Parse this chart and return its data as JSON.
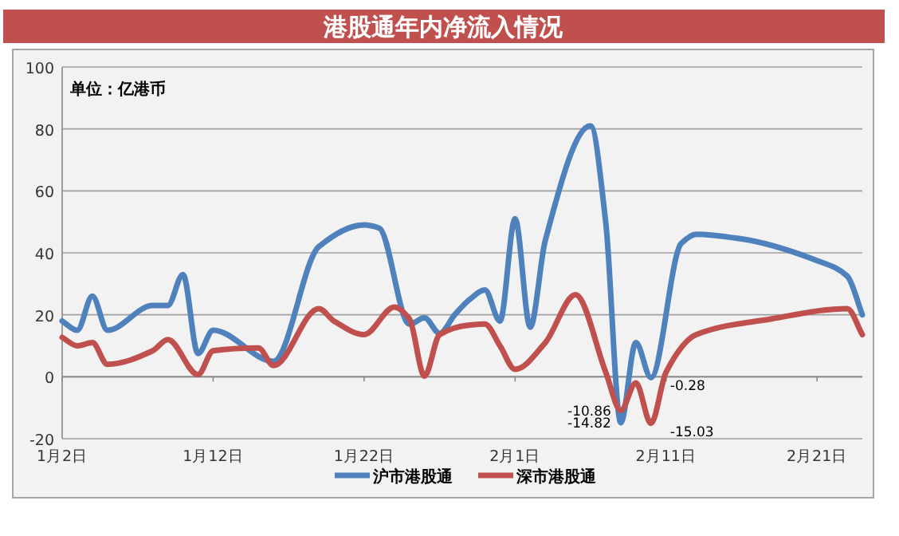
{
  "chart_data": {
    "type": "line",
    "title": "港股通年内净流入情况",
    "annotations": [
      "单位：亿港币"
    ],
    "xlim": [
      "--01-02",
      "--02-24"
    ],
    "xticks": [
      {
        "value": "--01-02",
        "label": "1月2日"
      },
      {
        "value": "--01-12",
        "label": "1月12日"
      },
      {
        "value": "--01-22",
        "label": "1月22日"
      },
      {
        "value": "--02-01",
        "label": "2月1日"
      },
      {
        "value": "--02-11",
        "label": "2月11日"
      },
      {
        "value": "--02-21",
        "label": "2月21日"
      }
    ],
    "ylim": [
      -20,
      100
    ],
    "yticks": [
      -20,
      0,
      20,
      40,
      60,
      80,
      100
    ],
    "grid": "y",
    "legend": "bottom",
    "marker": "none",
    "line_style": "solid",
    "series": [
      {
        "name": "沪市港股通",
        "color": "#4f81bd",
        "x": [
          "--01-02",
          "--01-03",
          "--01-04",
          "--01-05",
          "--01-08",
          "--01-09",
          "--01-10",
          "--01-11",
          "--01-12",
          "--01-16",
          "--01-19",
          "--01-22",
          "--01-23",
          "--01-25",
          "--01-26",
          "--01-27",
          "--01-28",
          "--01-29",
          "--01-30",
          "--01-31",
          "--02-01",
          "--02-02",
          "--02-03",
          "--02-06",
          "--02-07",
          "--02-08",
          "--02-09",
          "--02-10",
          "--02-12",
          "--02-13",
          "--02-16",
          "--02-21",
          "--02-23",
          "--02-24"
        ],
        "values": [
          18,
          15,
          26,
          15,
          23,
          23,
          33,
          7.5,
          15,
          5,
          42,
          49,
          48,
          17,
          19,
          14,
          20,
          25,
          28,
          18,
          51,
          16,
          44,
          81,
          50,
          -14.82,
          11,
          -0.28,
          43,
          46,
          44.5,
          37.5,
          32.5,
          20
        ],
        "value_labels": [
          null,
          null,
          null,
          null,
          null,
          null,
          null,
          null,
          null,
          null,
          null,
          null,
          null,
          null,
          null,
          null,
          null,
          null,
          null,
          null,
          null,
          null,
          null,
          null,
          null,
          "-14.82",
          null,
          "-0.28",
          null,
          null,
          null,
          null,
          null,
          null
        ]
      },
      {
        "name": "深市港股通",
        "color": "#c0504d",
        "x": [
          "--01-02",
          "--01-03",
          "--01-04",
          "--01-05",
          "--01-08",
          "--01-09",
          "--01-11",
          "--01-12",
          "--01-15",
          "--01-16",
          "--01-19",
          "--01-20",
          "--01-22",
          "--01-24",
          "--01-25",
          "--01-26",
          "--01-27",
          "--01-29",
          "--01-30",
          "--01-31",
          "--02-01",
          "--02-03",
          "--02-05",
          "--02-07",
          "--02-08",
          "--02-09",
          "--02-10",
          "--02-11",
          "--02-13",
          "--02-18",
          "--02-23",
          "--02-24"
        ],
        "values": [
          12.7,
          10,
          11,
          4,
          8.4,
          12,
          0.7,
          8.4,
          9.3,
          3.6,
          22,
          18,
          13.6,
          22.5,
          18.7,
          0.2,
          13.6,
          16.7,
          17,
          10,
          2.4,
          11,
          26.5,
          1.5,
          -10.86,
          -2,
          -15.03,
          1.5,
          13.6,
          18.7,
          22,
          13.6
        ],
        "value_labels": [
          null,
          null,
          null,
          null,
          null,
          null,
          null,
          null,
          null,
          null,
          null,
          null,
          null,
          null,
          null,
          null,
          null,
          null,
          null,
          null,
          null,
          null,
          null,
          null,
          "-10.86",
          null,
          "-15.03",
          null,
          null,
          null,
          null,
          null
        ]
      }
    ]
  }
}
